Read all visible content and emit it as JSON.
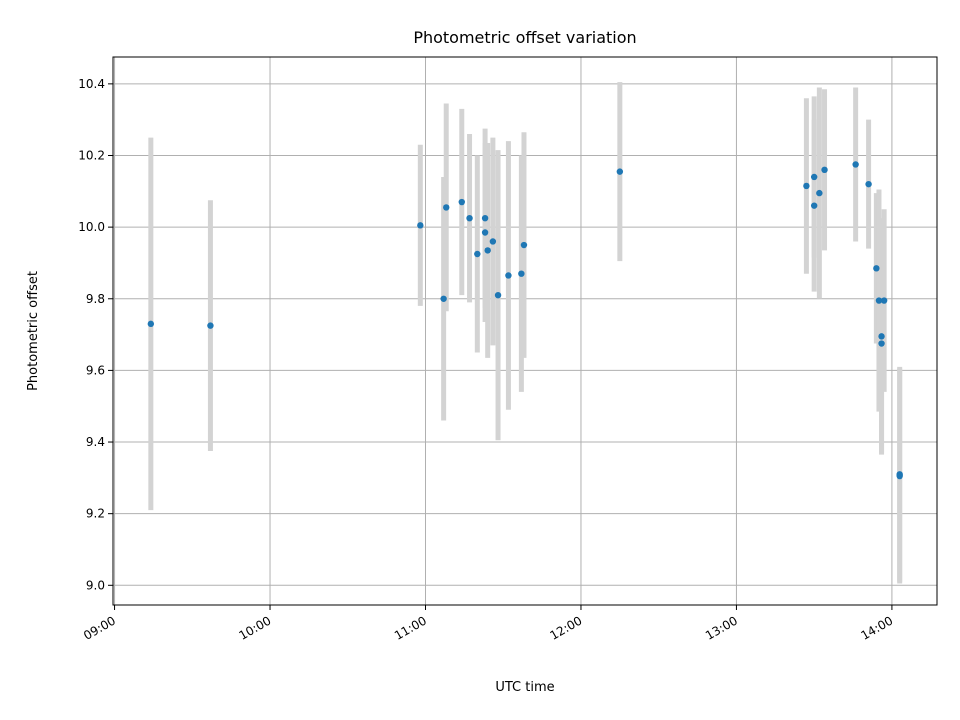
{
  "chart_data": {
    "type": "scatter",
    "title": "Photometric offset variation",
    "xlabel": "UTC time",
    "ylabel": "Photometric offset",
    "x_ticks": [
      "09:00",
      "10:00",
      "11:00",
      "12:00",
      "13:00",
      "14:00"
    ],
    "y_ticks": [
      "9.0",
      "9.2",
      "9.4",
      "9.6",
      "9.8",
      "10.0",
      "10.2",
      "10.4"
    ],
    "xlim": [
      "08:59:24",
      "14:17:24"
    ],
    "ylim": [
      8.945,
      10.475
    ],
    "grid": true,
    "point_color": "#1f77b4",
    "errorbar_color": "#d3d3d3",
    "points": [
      {
        "t": "09:14",
        "y": 9.73,
        "err": 0.52
      },
      {
        "t": "09:37",
        "y": 9.725,
        "err": 0.35
      },
      {
        "t": "10:58",
        "y": 10.005,
        "err": 0.225
      },
      {
        "t": "11:07",
        "y": 9.8,
        "err": 0.34
      },
      {
        "t": "11:08",
        "y": 10.055,
        "err": 0.29
      },
      {
        "t": "11:14",
        "y": 10.07,
        "err": 0.26
      },
      {
        "t": "11:17",
        "y": 10.025,
        "err": 0.235
      },
      {
        "t": "11:20",
        "y": 9.925,
        "err": 0.275
      },
      {
        "t": "11:23",
        "y": 10.025,
        "err": 0.25
      },
      {
        "t": "11:23",
        "y": 9.985,
        "err": 0.25
      },
      {
        "t": "11:24",
        "y": 9.935,
        "err": 0.3
      },
      {
        "t": "11:26",
        "y": 9.96,
        "err": 0.29
      },
      {
        "t": "11:28",
        "y": 9.81,
        "err": 0.405
      },
      {
        "t": "11:32",
        "y": 9.865,
        "err": 0.375
      },
      {
        "t": "11:37",
        "y": 9.87,
        "err": 0.33
      },
      {
        "t": "11:38",
        "y": 9.95,
        "err": 0.315
      },
      {
        "t": "12:15",
        "y": 10.155,
        "err": 0.25
      },
      {
        "t": "13:27",
        "y": 10.115,
        "err": 0.245
      },
      {
        "t": "13:30",
        "y": 10.14,
        "err": 0.225
      },
      {
        "t": "13:30",
        "y": 10.06,
        "err": 0.24
      },
      {
        "t": "13:32",
        "y": 10.095,
        "err": 0.295
      },
      {
        "t": "13:34",
        "y": 10.16,
        "err": 0.225
      },
      {
        "t": "13:46",
        "y": 10.175,
        "err": 0.215
      },
      {
        "t": "13:51",
        "y": 10.12,
        "err": 0.18
      },
      {
        "t": "13:54",
        "y": 9.885,
        "err": 0.21
      },
      {
        "t": "13:55",
        "y": 9.795,
        "err": 0.31
      },
      {
        "t": "13:56",
        "y": 9.675,
        "err": 0.305
      },
      {
        "t": "13:56",
        "y": 9.695,
        "err": 0.33
      },
      {
        "t": "13:57",
        "y": 9.795,
        "err": 0.255
      },
      {
        "t": "14:03",
        "y": 9.31,
        "err": 0.3
      },
      {
        "t": "14:03",
        "y": 9.305,
        "err": 0.3
      }
    ]
  }
}
